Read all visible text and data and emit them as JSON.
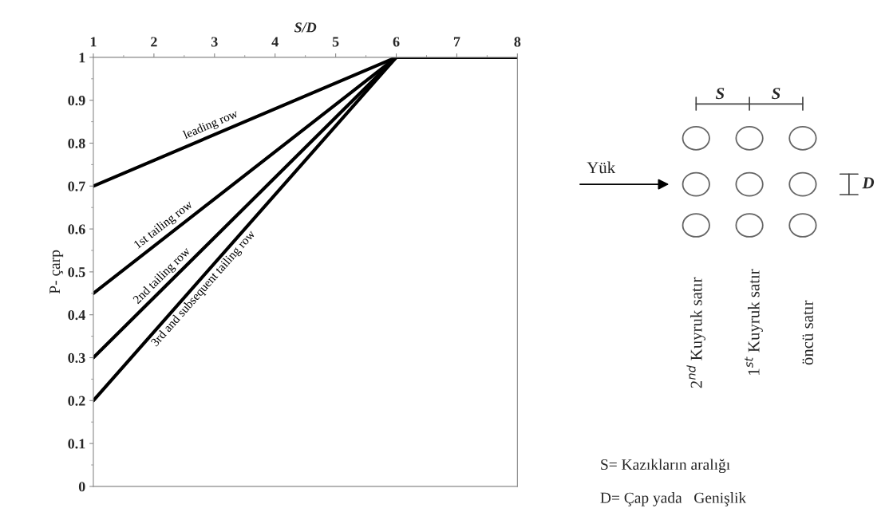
{
  "chart_data": {
    "type": "line",
    "xlabel": "S/D",
    "ylabel": "P- çarp",
    "xlim": [
      1,
      8
    ],
    "xticks": [
      1,
      2,
      3,
      4,
      5,
      6,
      7,
      8
    ],
    "ylim": [
      0,
      1
    ],
    "yticks": [
      0,
      {
        "value": 0.1,
        "label": "0.1"
      },
      {
        "value": 0.2,
        "label": "0.2"
      },
      {
        "value": 0.3,
        "label": "0.3"
      },
      {
        "value": 0.4,
        "label": "0.4"
      },
      {
        "value": 0.5,
        "label": "0.5"
      },
      {
        "value": 0.6,
        "label": "0.6"
      },
      {
        "value": 0.7,
        "label": "0.7"
      },
      {
        "value": 0.8,
        "label": "0.8"
      },
      {
        "value": 0.9,
        "label": "0.9"
      },
      1
    ],
    "grid": false,
    "legend": false,
    "marker": "none",
    "line_style": "solid",
    "series": [
      {
        "name": "leading row",
        "color": "#000000",
        "x": [
          1,
          6,
          8
        ],
        "values": [
          0.7,
          1,
          1
        ]
      },
      {
        "name": "1st tailing row",
        "color": "#000000",
        "x": [
          1,
          6,
          8
        ],
        "values": [
          0.45,
          1,
          1
        ]
      },
      {
        "name": "2nd tailing row",
        "color": "#000000",
        "x": [
          1,
          6,
          8
        ],
        "values": [
          0.3,
          1,
          1
        ]
      },
      {
        "name": "3rd and subsequent tailing row",
        "color": "#000000",
        "x": [
          1,
          6,
          8
        ],
        "values": [
          0.2,
          1,
          1
        ]
      }
    ],
    "annotations": [
      "Yük",
      "S",
      "S",
      "D",
      "2$^{nd}$ Kuyruk satır",
      "1$^{st}$ Kuyruk satır",
      "öncü satır",
      "S= Kazıkların aralığı",
      "D= Çap yada   Genişlik"
    ]
  }
}
